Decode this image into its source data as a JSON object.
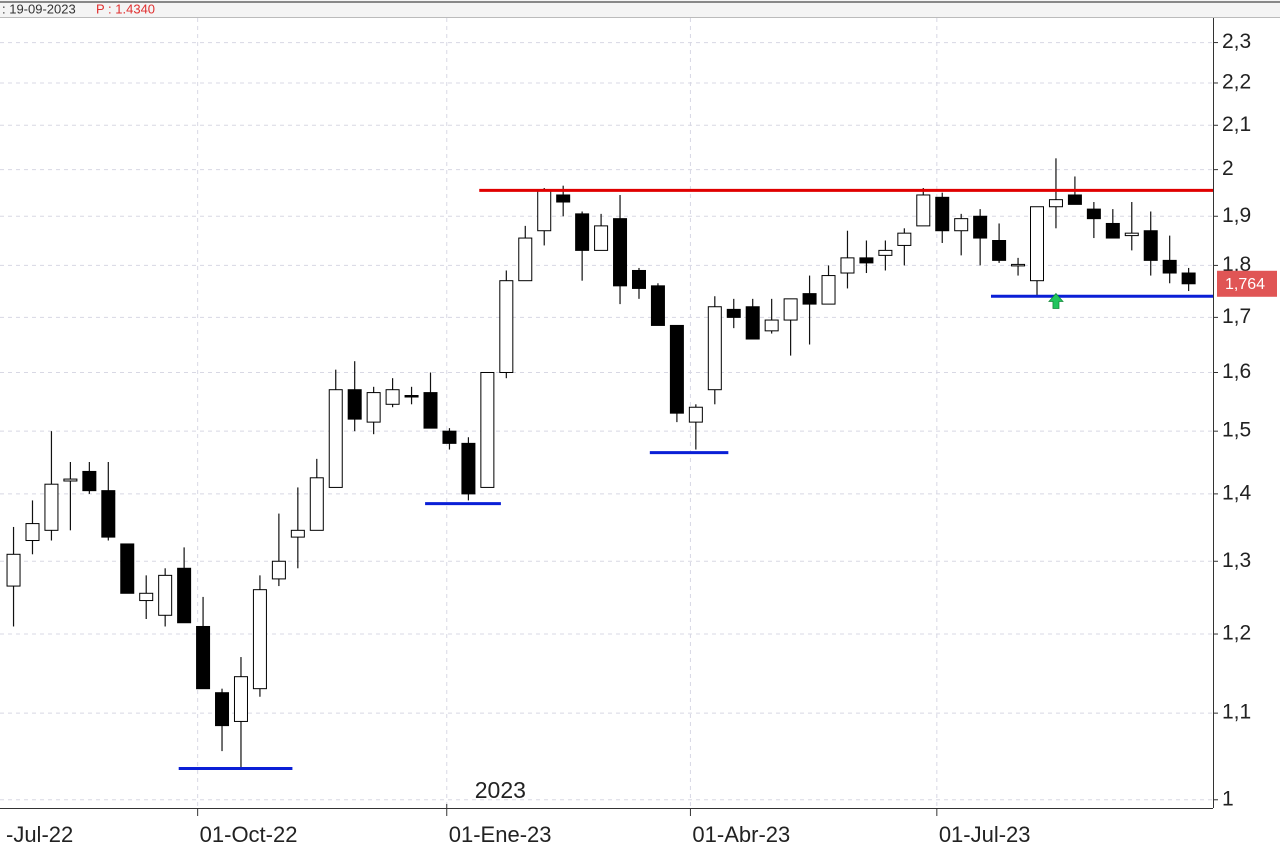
{
  "header": {
    "date": ": 19-09-2023",
    "price": "P : 1.4340"
  },
  "chart_data": {
    "type": "candlestick",
    "x": [
      "2022-07-25",
      "2022-08-01",
      "2022-08-08",
      "2022-08-15",
      "2022-08-22",
      "2022-08-29",
      "2022-09-05",
      "2022-09-12",
      "2022-09-19",
      "2022-09-26",
      "2022-10-03",
      "2022-10-10",
      "2022-10-17",
      "2022-10-24",
      "2022-10-31",
      "2022-11-07",
      "2022-11-14",
      "2022-11-21",
      "2022-11-28",
      "2022-12-05",
      "2022-12-12",
      "2022-12-19",
      "2022-12-26",
      "2023-01-02",
      "2023-01-09",
      "2023-01-16",
      "2023-01-23",
      "2023-01-30",
      "2023-02-06",
      "2023-02-13",
      "2023-02-20",
      "2023-02-27",
      "2023-03-06",
      "2023-03-13",
      "2023-03-20",
      "2023-03-27",
      "2023-04-03",
      "2023-04-10",
      "2023-04-17",
      "2023-04-24",
      "2023-05-01",
      "2023-05-08",
      "2023-05-15",
      "2023-05-22",
      "2023-05-29",
      "2023-06-05",
      "2023-06-12",
      "2023-06-19",
      "2023-06-26",
      "2023-07-03",
      "2023-07-10",
      "2023-07-17",
      "2023-07-24",
      "2023-07-31",
      "2023-08-07",
      "2023-08-14",
      "2023-08-21",
      "2023-08-28",
      "2023-09-04",
      "2023-09-11",
      "2023-09-18",
      "2023-09-25",
      "2023-10-02"
    ],
    "open": [
      1.265,
      1.33,
      1.345,
      1.42,
      1.435,
      1.405,
      1.325,
      1.245,
      1.225,
      1.29,
      1.21,
      1.125,
      1.09,
      1.13,
      1.275,
      1.335,
      1.345,
      1.41,
      1.57,
      1.515,
      1.545,
      1.56,
      1.565,
      1.5,
      1.48,
      1.41,
      1.6,
      1.77,
      1.87,
      1.945,
      1.905,
      1.83,
      1.895,
      1.79,
      1.76,
      1.685,
      1.515,
      1.57,
      1.715,
      1.72,
      1.675,
      1.695,
      1.745,
      1.725,
      1.785,
      1.815,
      1.82,
      1.84,
      1.88,
      1.94,
      1.87,
      1.9,
      1.85,
      1.8,
      1.77,
      1.92,
      1.945,
      1.915,
      1.885,
      1.86,
      1.87,
      1.81,
      1.785
    ],
    "high": [
      1.35,
      1.39,
      1.5,
      1.45,
      1.45,
      1.45,
      1.325,
      1.28,
      1.29,
      1.32,
      1.25,
      1.13,
      1.17,
      1.28,
      1.37,
      1.41,
      1.455,
      1.605,
      1.62,
      1.575,
      1.59,
      1.575,
      1.6,
      1.505,
      1.49,
      1.6,
      1.79,
      1.88,
      1.96,
      1.965,
      1.91,
      1.905,
      1.945,
      1.795,
      1.765,
      1.685,
      1.545,
      1.74,
      1.735,
      1.735,
      1.735,
      1.735,
      1.78,
      1.8,
      1.87,
      1.85,
      1.85,
      1.875,
      1.96,
      1.95,
      1.905,
      1.915,
      1.885,
      1.815,
      1.92,
      2.025,
      1.985,
      1.93,
      1.915,
      1.93,
      1.91,
      1.86,
      1.795
    ],
    "low": [
      1.21,
      1.31,
      1.33,
      1.345,
      1.4,
      1.33,
      1.255,
      1.22,
      1.21,
      1.215,
      1.13,
      1.055,
      1.035,
      1.12,
      1.265,
      1.29,
      1.345,
      1.41,
      1.5,
      1.495,
      1.54,
      1.545,
      1.505,
      1.47,
      1.39,
      1.41,
      1.59,
      1.77,
      1.84,
      1.9,
      1.77,
      1.83,
      1.725,
      1.735,
      1.685,
      1.515,
      1.47,
      1.545,
      1.68,
      1.66,
      1.67,
      1.63,
      1.65,
      1.725,
      1.755,
      1.785,
      1.79,
      1.8,
      1.88,
      1.845,
      1.82,
      1.8,
      1.805,
      1.78,
      1.74,
      1.875,
      1.925,
      1.855,
      1.855,
      1.83,
      1.78,
      1.765,
      1.75
    ],
    "close": [
      1.31,
      1.355,
      1.415,
      1.423,
      1.405,
      1.335,
      1.255,
      1.255,
      1.28,
      1.215,
      1.13,
      1.085,
      1.145,
      1.26,
      1.3,
      1.345,
      1.425,
      1.57,
      1.52,
      1.565,
      1.57,
      1.558,
      1.505,
      1.48,
      1.4,
      1.6,
      1.77,
      1.855,
      1.955,
      1.93,
      1.83,
      1.88,
      1.76,
      1.755,
      1.685,
      1.53,
      1.54,
      1.72,
      1.7,
      1.66,
      1.695,
      1.735,
      1.725,
      1.78,
      1.815,
      1.805,
      1.83,
      1.865,
      1.945,
      1.87,
      1.895,
      1.855,
      1.81,
      1.802,
      1.92,
      1.935,
      1.925,
      1.895,
      1.855,
      1.865,
      1.81,
      1.785,
      1.764
    ],
    "ylim": [
      0.991,
      2.363
    ],
    "log_scale": true,
    "yticks": [
      {
        "value": 2.3,
        "label": "2,3"
      },
      {
        "value": 2.2,
        "label": "2,2"
      },
      {
        "value": 2.1,
        "label": "2,1"
      },
      2,
      {
        "value": 1.9,
        "label": "1,9"
      },
      {
        "value": 1.8,
        "label": "1,8"
      },
      {
        "value": 1.7,
        "label": "1,7"
      },
      {
        "value": 1.6,
        "label": "1,6"
      },
      {
        "value": 1.5,
        "label": "1,5"
      },
      {
        "value": 1.4,
        "label": "1,4"
      },
      {
        "value": 1.3,
        "label": "1,3"
      },
      {
        "value": 1.2,
        "label": "1,2"
      },
      {
        "value": 1.1,
        "label": "1,1"
      },
      1
    ],
    "xlim": [
      "2022-07-20",
      "2023-10-11"
    ],
    "xticks": [
      {
        "value": "2022-07-01",
        "label": "-Jul-22"
      },
      {
        "value": "2022-10-01",
        "label": "01-Oct-22"
      },
      {
        "value": "2023-01-01",
        "label": "01-Ene-23"
      },
      {
        "value": "2023-04-01",
        "label": "01-Abr-23"
      },
      {
        "value": "2023-07-01",
        "label": "01-Jul-23"
      }
    ],
    "year_label": {
      "value": "2023-01-01",
      "label": "2023"
    },
    "grid": true,
    "last_price": {
      "value": 1.764,
      "label": "1,764",
      "color": "#e05555"
    },
    "levels": [
      {
        "value": 1.955,
        "from": "2023-01-13",
        "to": "2023-10-11",
        "color": "#e00000"
      },
      {
        "value": 1.035,
        "from": "2022-09-24",
        "to": "2022-11-05",
        "color": "#0a1fd6"
      },
      {
        "value": 1.385,
        "from": "2022-12-24",
        "to": "2023-01-21",
        "color": "#0a1fd6"
      },
      {
        "value": 1.465,
        "from": "2023-03-17",
        "to": "2023-04-15",
        "color": "#0a1fd6"
      },
      {
        "value": 1.74,
        "from": "2023-07-21",
        "to": "2023-10-11",
        "color": "#0a1fd6"
      }
    ],
    "markers": [
      {
        "x": "2023-08-14",
        "y": 1.73,
        "color": "#22c55e"
      }
    ]
  }
}
